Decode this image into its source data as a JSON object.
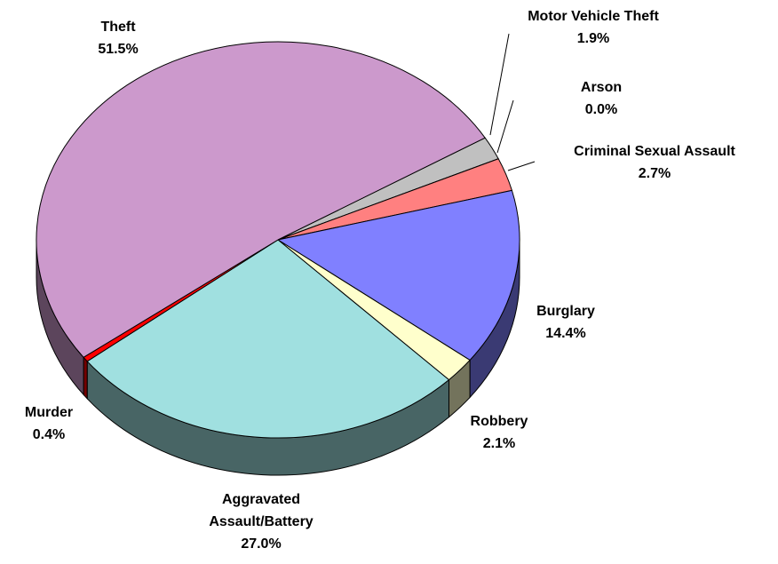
{
  "chart_data": {
    "type": "pie",
    "categories": [
      "Motor Vehicle Theft",
      "Arson",
      "Criminal Sexual Assault",
      "Burglary",
      "Robbery",
      "Aggravated Assault/Battery",
      "Murder",
      "Theft"
    ],
    "values": [
      1.9,
      0.0,
      2.7,
      14.4,
      2.1,
      27.0,
      0.4,
      51.5
    ],
    "value_labels": [
      "1.9%",
      "0.0%",
      "2.7%",
      "14.4%",
      "2.1%",
      "27.0%",
      "0.4%",
      "51.5%"
    ],
    "colors": [
      "#c0c0c0",
      "#993366",
      "#ff8080",
      "#8080ff",
      "#ffffcc",
      "#a0e0e0",
      "#ff0000",
      "#cc99cc"
    ]
  }
}
